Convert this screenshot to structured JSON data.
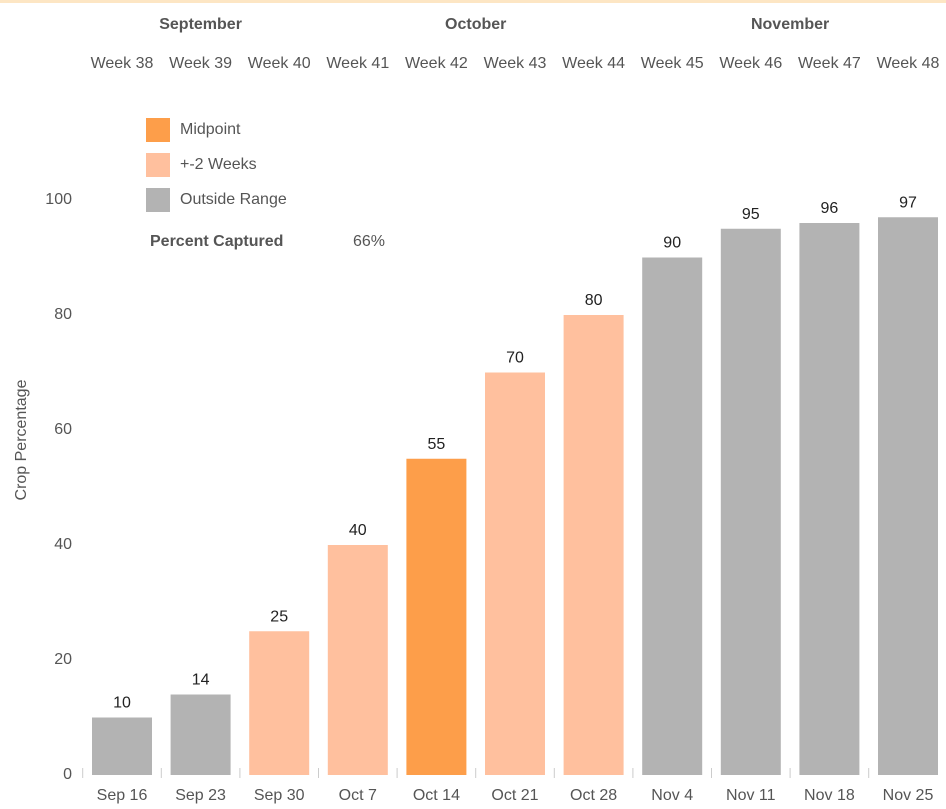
{
  "chart_data": {
    "type": "bar",
    "months": [
      {
        "name": "September",
        "weeks": [
          "Week 38",
          "Week 39",
          "Week 40"
        ]
      },
      {
        "name": "October",
        "weeks": [
          "Week 41",
          "Week 42",
          "Week 43",
          "Week 44"
        ]
      },
      {
        "name": "November",
        "weeks": [
          "Week 45",
          "Week 46",
          "Week 47",
          "Week 48"
        ]
      }
    ],
    "y_label": "Crop Percentage",
    "categories": [
      "Sep 16",
      "Sep 23",
      "Sep 30",
      "Oct 7",
      "Oct 14",
      "Oct 21",
      "Oct 28",
      "Nov 4",
      "Nov 11",
      "Nov 18",
      "Nov 25"
    ],
    "values": [
      10,
      14,
      25,
      40,
      55,
      70,
      80,
      90,
      95,
      96,
      97
    ],
    "colors": [
      "#b3b3b3",
      "#b3b3b3",
      "#ffc09e",
      "#ffc09e",
      "#fd9e4a",
      "#ffc09e",
      "#ffc09e",
      "#b3b3b3",
      "#b3b3b3",
      "#b3b3b3",
      "#b3b3b3"
    ],
    "legend": [
      {
        "name": "Midpoint",
        "color": "#fd9e4a"
      },
      {
        "name": "+-2 Weeks",
        "color": "#ffc09e"
      },
      {
        "name": "Outside Range",
        "color": "#b3b3b3"
      }
    ],
    "annotation": {
      "label": "Percent Captured",
      "value": "66%"
    },
    "ylim": [
      0,
      100
    ],
    "yticks": [
      0,
      20,
      40,
      60,
      80,
      100
    ],
    "grid": false
  }
}
